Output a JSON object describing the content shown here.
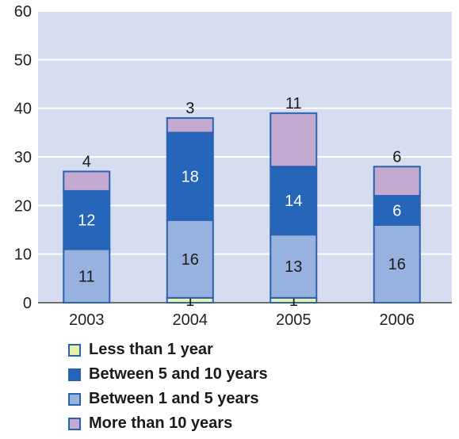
{
  "chart_data": {
    "type": "bar",
    "stacked": true,
    "categories": [
      "2003",
      "2004",
      "2005",
      "2006"
    ],
    "ylim": [
      0,
      60
    ],
    "yticks": [
      0,
      10,
      20,
      30,
      40,
      50,
      60
    ],
    "grid": true,
    "legend_position": "bottom",
    "series": [
      {
        "name": "Less than 1 year",
        "values": [
          0,
          1,
          1,
          0
        ],
        "labels": [
          "",
          "1",
          "1",
          ""
        ],
        "color": "#e8f2a6",
        "label_color": "#1a1a1a"
      },
      {
        "name": "Between 1 and 5 years",
        "values": [
          11,
          16,
          13,
          16
        ],
        "labels": [
          "11",
          "16",
          "13",
          "16"
        ],
        "color": "#98b2e0",
        "label_color": "#1a1a1a"
      },
      {
        "name": "Between 5 and 10 years",
        "values": [
          12,
          18,
          14,
          6
        ],
        "labels": [
          "12",
          "18",
          "14",
          "6"
        ],
        "color": "#2565ba",
        "label_color": "#ffffff"
      },
      {
        "name": "More than 10 years",
        "values": [
          4,
          3,
          11,
          6
        ],
        "labels": [
          "4",
          "3",
          "11",
          "6"
        ],
        "color": "#c4aad0",
        "label_color": "#1a1a1a",
        "label_outside": true
      }
    ],
    "legend_order": [
      0,
      2,
      1,
      3
    ],
    "colors": {
      "plot_bg": "#d6ddf0",
      "grid": "#ffffff",
      "bar_border": "#2a62b0",
      "axis": "#444444"
    }
  }
}
